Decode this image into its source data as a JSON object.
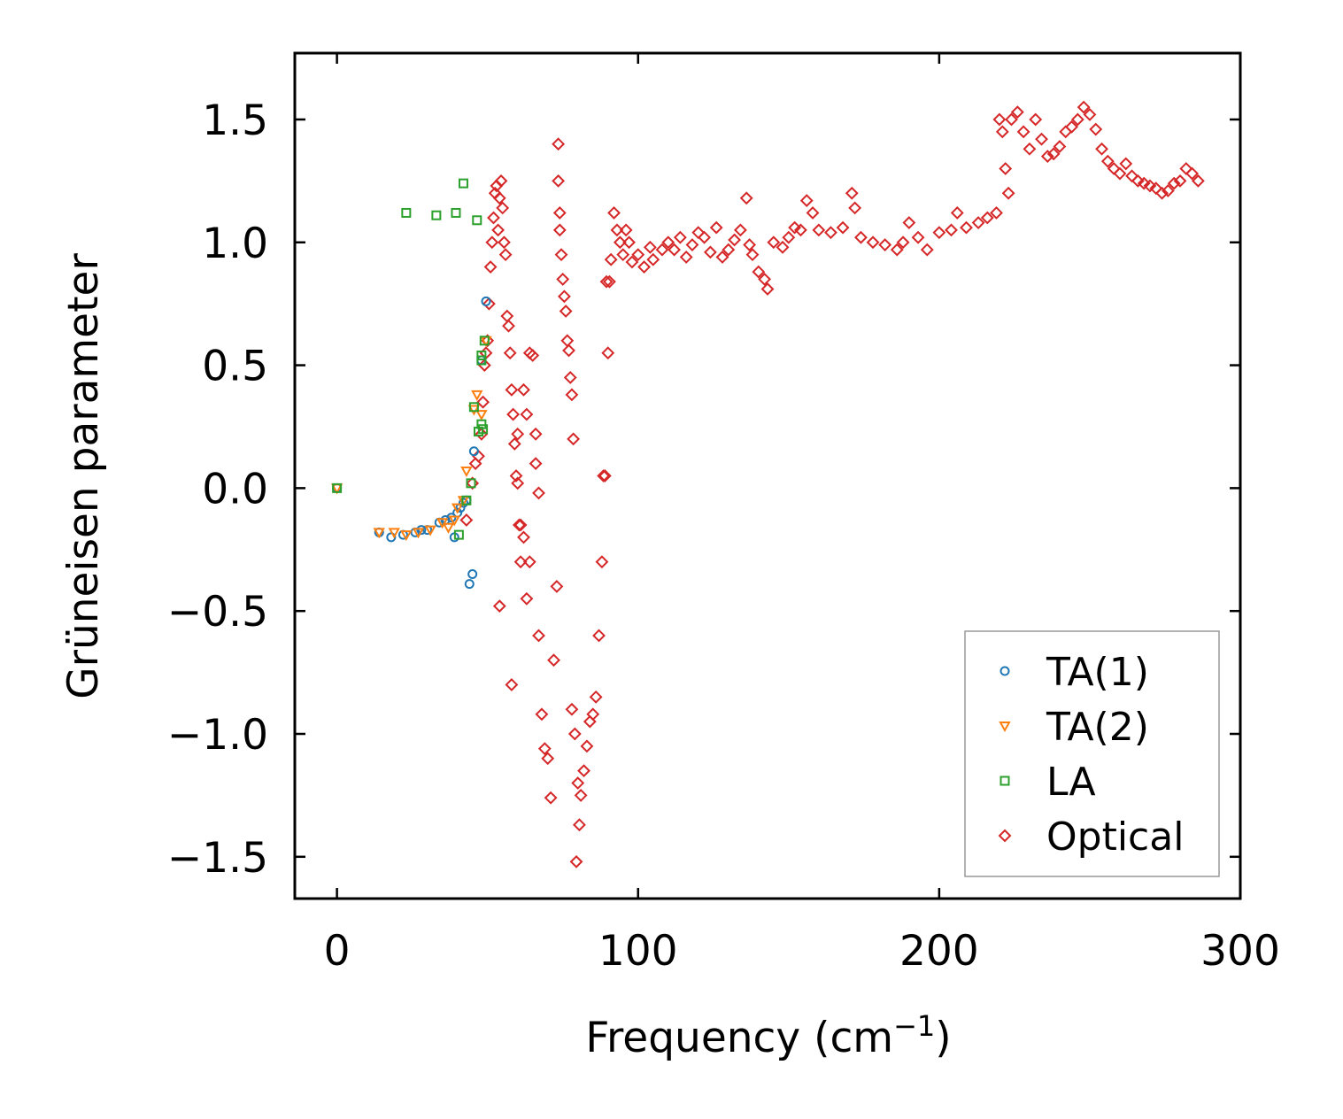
{
  "chart_data": {
    "type": "scatter",
    "title": "",
    "xlabel": "Frequency (cm",
    "xlabel_sup": "−1",
    "xlabel_close": ")",
    "ylabel": "Grüneisen parameter",
    "xlim": [
      -14,
      300
    ],
    "ylim": [
      -1.67,
      1.77
    ],
    "x_ticks": [
      0,
      100,
      200,
      300
    ],
    "y_ticks": [
      -1.5,
      -1.0,
      -0.5,
      0.0,
      0.5,
      1.0,
      1.5
    ],
    "x_tick_labels": [
      "0",
      "100",
      "200",
      "300"
    ],
    "y_tick_labels": [
      "−1.5",
      "−1.0",
      "−0.5",
      "0.0",
      "0.5",
      "1.0",
      "1.5"
    ],
    "grid": false,
    "legend_position": "lower-right",
    "series": [
      {
        "name": "TA(1)",
        "marker": "circle",
        "color": "#1f77b4",
        "points": [
          [
            0,
            0.0
          ],
          [
            14,
            -0.18
          ],
          [
            18,
            -0.2
          ],
          [
            22,
            -0.19
          ],
          [
            26,
            -0.18
          ],
          [
            28,
            -0.17
          ],
          [
            30,
            -0.17
          ],
          [
            34,
            -0.14
          ],
          [
            36,
            -0.13
          ],
          [
            38,
            -0.12
          ],
          [
            39,
            -0.2
          ],
          [
            40,
            -0.1
          ],
          [
            41,
            -0.08
          ],
          [
            42,
            -0.06
          ],
          [
            43,
            -0.05
          ],
          [
            44,
            -0.39
          ],
          [
            45,
            -0.35
          ],
          [
            45.5,
            0.15
          ],
          [
            48,
            0.52
          ],
          [
            49.5,
            0.76
          ]
        ]
      },
      {
        "name": "TA(2)",
        "marker": "triangle-down",
        "color": "#ff7f0e",
        "points": [
          [
            0,
            0.0
          ],
          [
            14,
            -0.18
          ],
          [
            19,
            -0.18
          ],
          [
            23,
            -0.19
          ],
          [
            27,
            -0.18
          ],
          [
            31,
            -0.17
          ],
          [
            35,
            -0.14
          ],
          [
            37,
            -0.16
          ],
          [
            39,
            -0.13
          ],
          [
            40,
            -0.08
          ],
          [
            42,
            -0.05
          ],
          [
            43,
            0.07
          ],
          [
            45.5,
            0.32
          ],
          [
            46.5,
            0.38
          ],
          [
            48,
            0.3
          ],
          [
            49.5,
            0.6
          ]
        ]
      },
      {
        "name": "LA",
        "marker": "square",
        "color": "#2ca02c",
        "points": [
          [
            0,
            0.0
          ],
          [
            23,
            1.12
          ],
          [
            33,
            1.11
          ],
          [
            39.5,
            1.12
          ],
          [
            42,
            1.24
          ],
          [
            46.5,
            1.09
          ],
          [
            40.5,
            -0.19
          ],
          [
            43,
            -0.05
          ],
          [
            44.5,
            0.02
          ],
          [
            45.5,
            0.33
          ],
          [
            47,
            0.23
          ],
          [
            48,
            0.26
          ],
          [
            48.5,
            0.24
          ],
          [
            48,
            0.54
          ],
          [
            48,
            0.52
          ],
          [
            49,
            0.6
          ]
        ]
      },
      {
        "name": "Optical",
        "marker": "diamond",
        "color": "#d62728",
        "points": [
          [
            43,
            -0.13
          ],
          [
            45,
            0.02
          ],
          [
            46,
            0.1
          ],
          [
            47,
            0.13
          ],
          [
            48,
            0.22
          ],
          [
            48.5,
            0.35
          ],
          [
            49,
            0.5
          ],
          [
            49.5,
            0.55
          ],
          [
            50,
            0.6
          ],
          [
            50.5,
            0.75
          ],
          [
            51,
            0.9
          ],
          [
            51.5,
            1.0
          ],
          [
            52,
            1.1
          ],
          [
            52.5,
            1.2
          ],
          [
            53,
            1.23
          ],
          [
            53.5,
            1.05
          ],
          [
            54,
            1.18
          ],
          [
            54.5,
            1.25
          ],
          [
            55,
            1.14
          ],
          [
            55.5,
            1.0
          ],
          [
            56,
            0.95
          ],
          [
            56.5,
            0.7
          ],
          [
            57,
            0.66
          ],
          [
            57.5,
            0.55
          ],
          [
            58,
            0.4
          ],
          [
            58.5,
            0.3
          ],
          [
            59,
            0.18
          ],
          [
            59.5,
            0.05
          ],
          [
            60,
            0.22
          ],
          [
            60.5,
            -0.15
          ],
          [
            61,
            -0.3
          ],
          [
            62,
            -0.2
          ],
          [
            63,
            -0.45
          ],
          [
            64,
            -0.3
          ],
          [
            54,
            -0.48
          ],
          [
            58,
            -0.8
          ],
          [
            60,
            0.02
          ],
          [
            61,
            -0.15
          ],
          [
            62,
            0.4
          ],
          [
            63,
            0.3
          ],
          [
            64,
            0.55
          ],
          [
            65,
            0.54
          ],
          [
            66,
            0.22
          ],
          [
            66,
            0.1
          ],
          [
            67,
            -0.02
          ],
          [
            67,
            -0.6
          ],
          [
            68,
            -0.92
          ],
          [
            69,
            -1.06
          ],
          [
            70,
            -1.1
          ],
          [
            71,
            -1.26
          ],
          [
            72,
            -0.7
          ],
          [
            73,
            -0.4
          ],
          [
            73.5,
            1.4
          ],
          [
            73.5,
            1.25
          ],
          [
            74,
            1.12
          ],
          [
            74,
            1.05
          ],
          [
            74.5,
            0.95
          ],
          [
            75,
            0.85
          ],
          [
            75.5,
            0.78
          ],
          [
            76,
            0.72
          ],
          [
            76.5,
            0.6
          ],
          [
            77,
            0.56
          ],
          [
            77.5,
            0.45
          ],
          [
            78,
            0.38
          ],
          [
            78.5,
            0.2
          ],
          [
            78,
            -0.9
          ],
          [
            79,
            -1.0
          ],
          [
            80,
            -1.2
          ],
          [
            80.5,
            -1.37
          ],
          [
            79.5,
            -1.52
          ],
          [
            81,
            -1.25
          ],
          [
            82,
            -1.15
          ],
          [
            83,
            -1.05
          ],
          [
            84,
            -0.95
          ],
          [
            85,
            -0.92
          ],
          [
            86,
            -0.85
          ],
          [
            87,
            -0.6
          ],
          [
            88,
            -0.3
          ],
          [
            88.5,
            0.05
          ],
          [
            89,
            0.05
          ],
          [
            89.5,
            0.84
          ],
          [
            90,
            0.55
          ],
          [
            90.5,
            0.84
          ],
          [
            91,
            0.93
          ],
          [
            92,
            1.12
          ],
          [
            93,
            1.05
          ],
          [
            94,
            1.0
          ],
          [
            95,
            0.95
          ],
          [
            96,
            1.05
          ],
          [
            97,
            1.0
          ],
          [
            98,
            0.92
          ],
          [
            100,
            0.95
          ],
          [
            102,
            0.9
          ],
          [
            104,
            0.98
          ],
          [
            105,
            0.93
          ],
          [
            108,
            0.97
          ],
          [
            110,
            1.0
          ],
          [
            112,
            0.97
          ],
          [
            114,
            1.02
          ],
          [
            116,
            0.94
          ],
          [
            118,
            0.99
          ],
          [
            120,
            1.04
          ],
          [
            122,
            1.02
          ],
          [
            124,
            0.96
          ],
          [
            126,
            1.06
          ],
          [
            128,
            0.94
          ],
          [
            130,
            0.97
          ],
          [
            132,
            1.01
          ],
          [
            134,
            1.05
          ],
          [
            136,
            1.18
          ],
          [
            137,
            0.99
          ],
          [
            138,
            0.95
          ],
          [
            140,
            0.88
          ],
          [
            142,
            0.85
          ],
          [
            143,
            0.81
          ],
          [
            145,
            1.0
          ],
          [
            148,
            0.98
          ],
          [
            150,
            1.02
          ],
          [
            152,
            1.06
          ],
          [
            154,
            1.05
          ],
          [
            156,
            1.17
          ],
          [
            158,
            1.12
          ],
          [
            160,
            1.05
          ],
          [
            164,
            1.04
          ],
          [
            168,
            1.06
          ],
          [
            171,
            1.2
          ],
          [
            172,
            1.14
          ],
          [
            174,
            1.02
          ],
          [
            178,
            1.0
          ],
          [
            182,
            0.99
          ],
          [
            186,
            0.97
          ],
          [
            188,
            1.0
          ],
          [
            190,
            1.08
          ],
          [
            193,
            1.02
          ],
          [
            196,
            0.97
          ],
          [
            200,
            1.04
          ],
          [
            204,
            1.05
          ],
          [
            206,
            1.12
          ],
          [
            209,
            1.06
          ],
          [
            213,
            1.08
          ],
          [
            216,
            1.1
          ],
          [
            219,
            1.12
          ],
          [
            220,
            1.5
          ],
          [
            221,
            1.45
          ],
          [
            222,
            1.3
          ],
          [
            223,
            1.2
          ],
          [
            224,
            1.5
          ],
          [
            226,
            1.53
          ],
          [
            228,
            1.45
          ],
          [
            230,
            1.38
          ],
          [
            232,
            1.5
          ],
          [
            234,
            1.42
          ],
          [
            236,
            1.35
          ],
          [
            238,
            1.36
          ],
          [
            240,
            1.39
          ],
          [
            242,
            1.45
          ],
          [
            244,
            1.47
          ],
          [
            246,
            1.5
          ],
          [
            248,
            1.55
          ],
          [
            250,
            1.52
          ],
          [
            252,
            1.46
          ],
          [
            254,
            1.38
          ],
          [
            256,
            1.33
          ],
          [
            258,
            1.3
          ],
          [
            260,
            1.28
          ],
          [
            262,
            1.32
          ],
          [
            264,
            1.27
          ],
          [
            266,
            1.25
          ],
          [
            268,
            1.24
          ],
          [
            270,
            1.23
          ],
          [
            272,
            1.22
          ],
          [
            274,
            1.2
          ],
          [
            276,
            1.21
          ],
          [
            278,
            1.24
          ],
          [
            280,
            1.25
          ],
          [
            282,
            1.3
          ],
          [
            284,
            1.28
          ],
          [
            286,
            1.25
          ]
        ]
      }
    ]
  }
}
